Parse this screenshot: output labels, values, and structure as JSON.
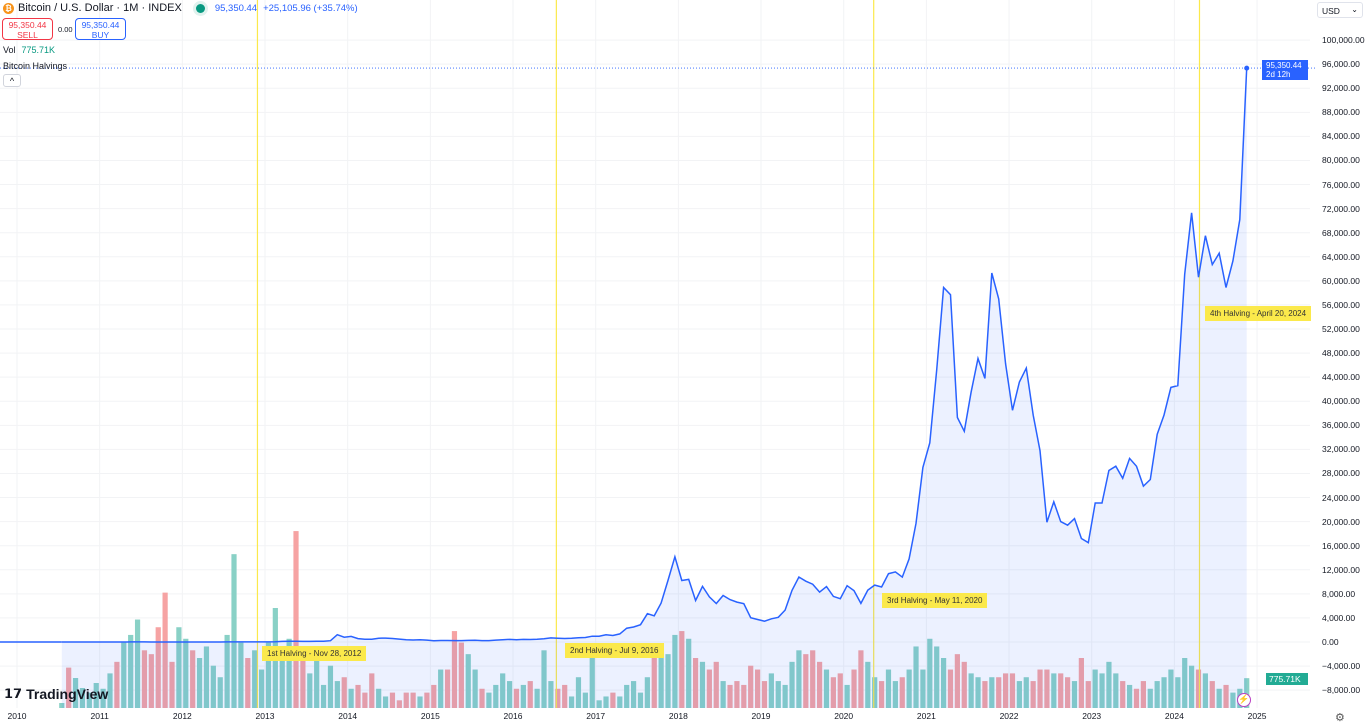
{
  "header": {
    "title": "Bitcoin / U.S. Dollar · 1M · INDEX",
    "last": "95,350.44",
    "change": "+25,105.96 (+35.74%)",
    "coin_icon": "bitcoin-icon"
  },
  "trade": {
    "sell_price": "95,350.44",
    "sell_label": "SELL",
    "spread": "0.00",
    "buy_price": "95,350.44",
    "buy_label": "BUY"
  },
  "volume": {
    "label": "Vol",
    "value": "775.71K"
  },
  "indicator": {
    "label": "Bitcoin Halvings",
    "collapse": "^"
  },
  "currency": {
    "selected": "USD"
  },
  "price_tag": {
    "price": "95,350.44",
    "countdown": "2d 12h"
  },
  "brand": "TradingView",
  "colors": {
    "line": "#2962ff",
    "up_volume": "#89d1c6",
    "down_volume": "#f6a3a3",
    "halving": "#fbe94b"
  },
  "chart_data": {
    "type": "line",
    "yaxis_ticks": [
      100000,
      96000,
      92000,
      88000,
      84000,
      80000,
      76000,
      72000,
      68000,
      64000,
      60000,
      56000,
      52000,
      48000,
      44000,
      40000,
      36000,
      32000,
      28000,
      24000,
      20000,
      16000,
      12000,
      8000,
      4000,
      0,
      -4000,
      -8000
    ],
    "ytick_labels": [
      "100,000.00",
      "96,000.00",
      "92,000.00",
      "88,000.00",
      "84,000.00",
      "80,000.00",
      "76,000.00",
      "72,000.00",
      "68,000.00",
      "64,000.00",
      "60,000.00",
      "56,000.00",
      "52,000.00",
      "48,000.00",
      "44,000.00",
      "40,000.00",
      "36,000.00",
      "32,000.00",
      "28,000.00",
      "24,000.00",
      "20,000.00",
      "16,000.00",
      "12,000.00",
      "8,000.00",
      "4,000.00",
      "0.00",
      "−4,000.00",
      "−8,000.00"
    ],
    "xaxis_ticks": [
      "2010",
      "2011",
      "2012",
      "2013",
      "2014",
      "2015",
      "2016",
      "2017",
      "2018",
      "2019",
      "2020",
      "2021",
      "2022",
      "2023",
      "2024",
      "2025"
    ],
    "start": "2010-07",
    "close": [
      0.07,
      0.06,
      0.06,
      0.19,
      0.28,
      0.3,
      0.52,
      0.86,
      0.78,
      3.5,
      8.7,
      16.7,
      13.4,
      8.2,
      5.1,
      3.2,
      3.0,
      4.7,
      5.5,
      4.9,
      4.9,
      5.0,
      5.1,
      6.7,
      9.4,
      10.1,
      12.4,
      11.2,
      12.6,
      13.5,
      20,
      33,
      93,
      139,
      129,
      97,
      106,
      141,
      141,
      211,
      1205,
      805,
      938,
      573,
      457,
      448,
      630,
      640,
      587,
      478,
      387,
      338,
      378,
      320,
      217,
      254,
      244,
      236,
      230,
      263,
      284,
      230,
      236,
      314,
      377,
      430,
      368,
      437,
      416,
      448,
      531,
      673,
      624,
      575,
      609,
      700,
      745,
      964,
      970,
      1190,
      1080,
      1350,
      2300,
      2500,
      2870,
      4700,
      4340,
      6470,
      10230,
      14160,
      10220,
      10400,
      6900,
      9240,
      7500,
      6400,
      7730,
      7040,
      6630,
      6370,
      4040,
      3740,
      3460,
      3850,
      4100,
      5300,
      8570,
      10800,
      10100,
      9600,
      8290,
      9200,
      7570,
      7190,
      9350,
      8540,
      6420,
      8630,
      9450,
      9140,
      11350,
      11650,
      10780,
      13800,
      19700,
      29000,
      33100,
      45200,
      58900,
      57700,
      37300,
      35000,
      41500,
      47100,
      43800,
      61300,
      57000,
      46200,
      38500,
      43200,
      45500,
      37700,
      31800,
      19900,
      23300,
      20000,
      19400,
      20500,
      17200,
      16500,
      23100,
      23100,
      28500,
      29200,
      27200,
      30500,
      29200,
      25900,
      27000,
      34500,
      37700,
      42300,
      42600,
      61100,
      71300,
      60600,
      67500,
      62700,
      64600,
      58900,
      63300,
      70200,
      95350.44
    ],
    "volume_k": [
      130,
      1050,
      780,
      520,
      400,
      650,
      500,
      900,
      1200,
      1700,
      1900,
      2300,
      1500,
      1400,
      2100,
      3000,
      1200,
      2100,
      1800,
      1500,
      1300,
      1600,
      1100,
      800,
      1900,
      4000,
      1700,
      1300,
      1500,
      1000,
      1700,
      2600,
      1400,
      1800,
      4600,
      1300,
      900,
      1600,
      600,
      1100,
      700,
      800,
      500,
      600,
      400,
      900,
      500,
      300,
      400,
      200,
      400,
      400,
      300,
      400,
      600,
      1000,
      1000,
      2000,
      1700,
      1400,
      1000,
      500,
      400,
      600,
      900,
      700,
      500,
      600,
      700,
      500,
      1500,
      700,
      500,
      600,
      300,
      800,
      400,
      1400,
      200,
      300,
      400,
      300,
      600,
      700,
      400,
      800,
      1500,
      1400,
      1400,
      1900,
      2000,
      1800,
      1300,
      1200,
      1000,
      1200,
      700,
      600,
      700,
      600,
      1100,
      1000,
      700,
      900,
      700,
      600,
      1200,
      1500,
      1400,
      1500,
      1200,
      1000,
      800,
      900,
      600,
      1000,
      1500,
      1200,
      800,
      700,
      1000,
      700,
      800,
      1000,
      1600,
      1000,
      1800,
      1600,
      1300,
      1000,
      1400,
      1200,
      900,
      800,
      700,
      800,
      800,
      900,
      900,
      700,
      800,
      700,
      1000,
      1000,
      900,
      900,
      800,
      700,
      1300,
      700,
      1000,
      900,
      1200,
      900,
      700,
      600,
      500,
      700,
      500,
      700,
      800,
      1000,
      800,
      1300,
      1100,
      1000,
      900,
      700,
      500,
      600,
      400,
      500,
      775.71
    ],
    "halvings": [
      {
        "date": "2012-11-28",
        "label": "1st Halving - Nov 28, 2012"
      },
      {
        "date": "2016-07-09",
        "label": "2nd Halving - Jul 9, 2016"
      },
      {
        "date": "2020-05-11",
        "label": "3rd Halving - May 11, 2020"
      },
      {
        "date": "2024-04-20",
        "label": "4th Halving - April 20, 2024"
      }
    ]
  }
}
